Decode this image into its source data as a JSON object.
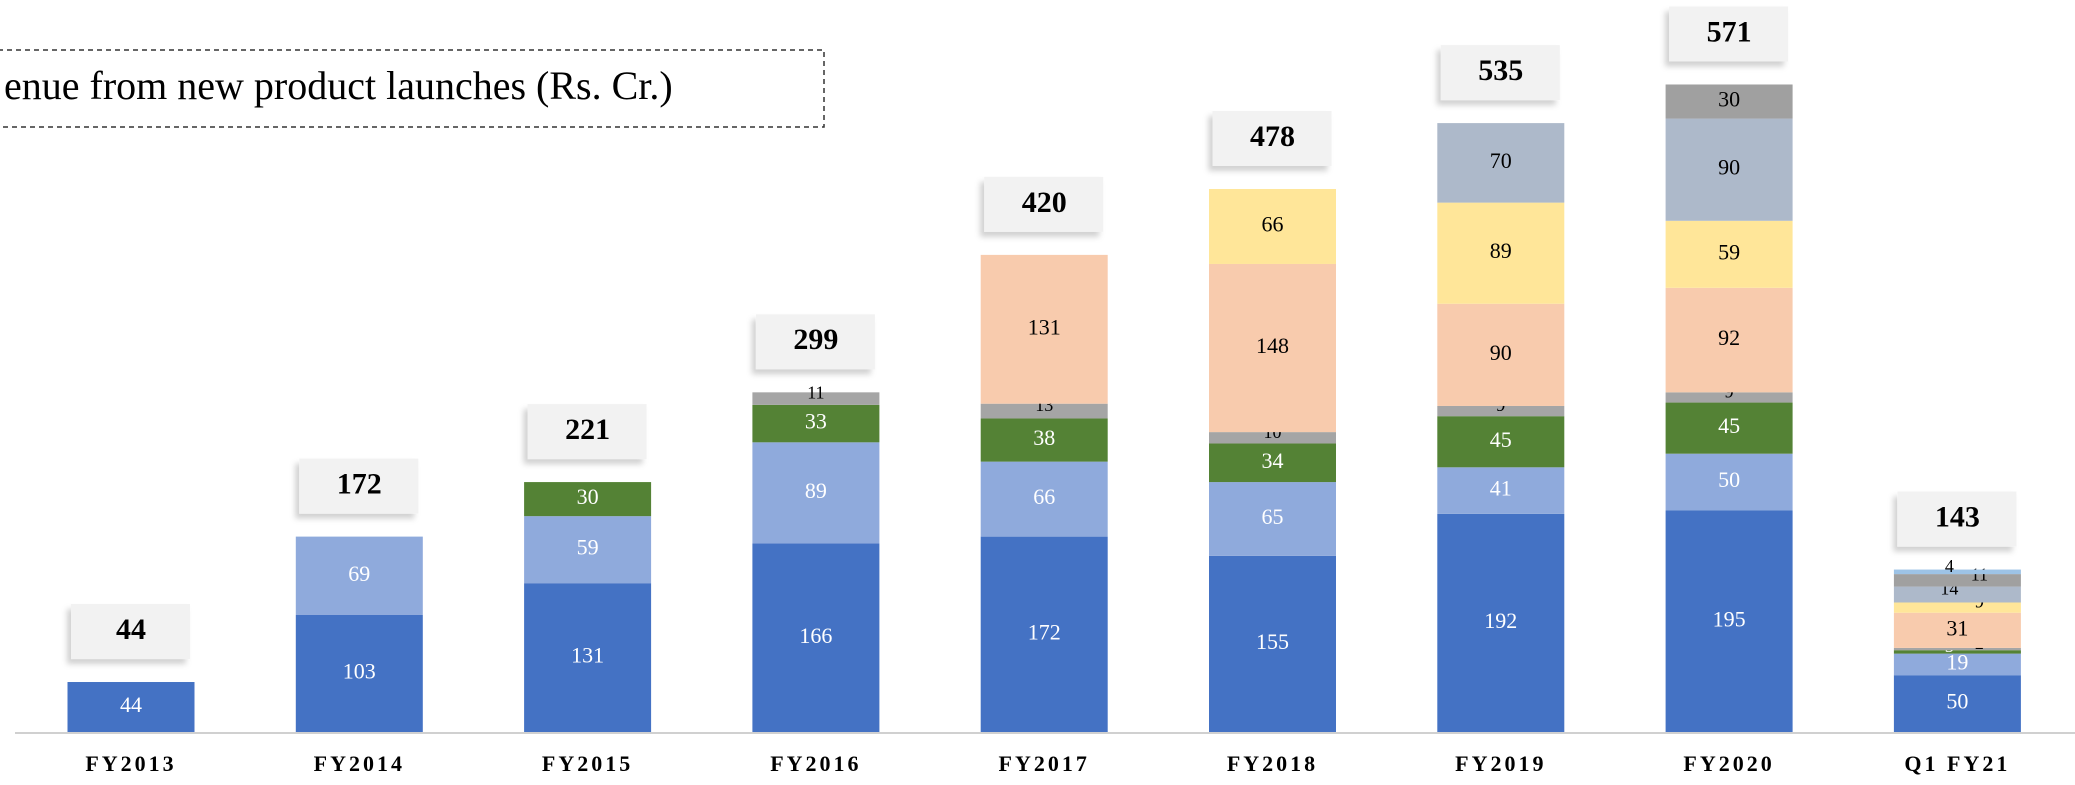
{
  "chart_data": {
    "type": "stacked-bar",
    "title": "enue from new product launches (Rs. Cr.)",
    "categories": [
      "FY2013",
      "FY2014",
      "FY2015",
      "FY2016",
      "FY2017",
      "FY2018",
      "FY2019",
      "FY2020",
      "Q1 FY21"
    ],
    "totals": [
      44,
      172,
      221,
      299,
      420,
      478,
      535,
      571,
      143
    ],
    "series": [
      {
        "color": "#4472c4",
        "values": [
          44,
          103,
          131,
          166,
          172,
          155,
          192,
          195,
          50
        ]
      },
      {
        "color": "#8faadc",
        "values": [
          null,
          69,
          59,
          89,
          66,
          65,
          41,
          50,
          19
        ]
      },
      {
        "color": "#548235",
        "values": [
          null,
          null,
          30,
          33,
          38,
          34,
          45,
          45,
          3
        ]
      },
      {
        "color": "#a5a5a5",
        "values": [
          null,
          null,
          null,
          11,
          13,
          10,
          9,
          9,
          2
        ]
      },
      {
        "color": "#f8cbad",
        "values": [
          null,
          null,
          null,
          null,
          131,
          148,
          90,
          92,
          31
        ]
      },
      {
        "color": "#ffe699",
        "values": [
          null,
          null,
          null,
          null,
          null,
          66,
          89,
          59,
          9
        ]
      },
      {
        "color": "#adb9ca",
        "values": [
          null,
          null,
          null,
          null,
          null,
          null,
          70,
          90,
          14
        ]
      },
      {
        "color": "#a0a0a0",
        "values": [
          null,
          null,
          null,
          null,
          null,
          null,
          null,
          30,
          11
        ]
      },
      {
        "color": "#9dc3e6",
        "values": [
          null,
          null,
          null,
          null,
          null,
          null,
          null,
          null,
          4
        ]
      }
    ]
  }
}
